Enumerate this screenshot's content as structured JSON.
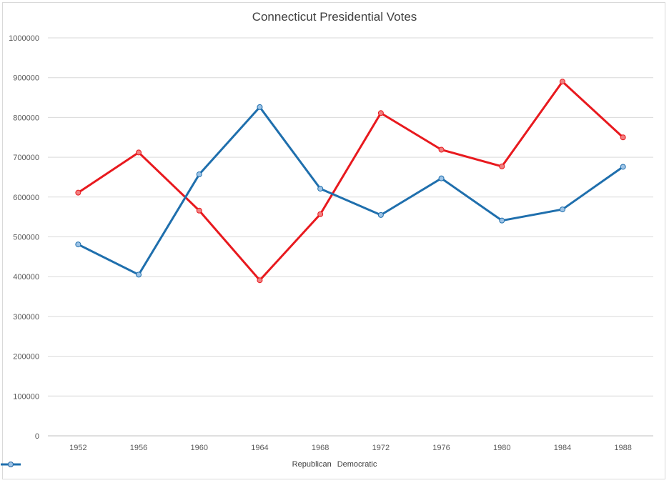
{
  "chart_data": {
    "type": "line",
    "title": "Connecticut Presidential Votes",
    "x": [
      "1952",
      "1956",
      "1960",
      "1964",
      "1968",
      "1972",
      "1976",
      "1980",
      "1984",
      "1988"
    ],
    "yticks": [
      "0",
      "100000",
      "200000",
      "300000",
      "400000",
      "500000",
      "600000",
      "700000",
      "800000",
      "900000",
      "1000000"
    ],
    "ylim": [
      0,
      1000000
    ],
    "grid": true,
    "legend_position": "bottom",
    "series": [
      {
        "name": "Republican",
        "color": "#e8191e",
        "marker_fill": "#f08080",
        "values": [
          611000,
          712000,
          566000,
          391000,
          557000,
          811000,
          719000,
          677000,
          890000,
          750000
        ]
      },
      {
        "name": "Democratic",
        "color": "#1f6fad",
        "marker_fill": "#9dc3e6",
        "values": [
          481000,
          405000,
          657000,
          826000,
          621000,
          555000,
          647000,
          541000,
          569000,
          676000
        ]
      }
    ]
  }
}
